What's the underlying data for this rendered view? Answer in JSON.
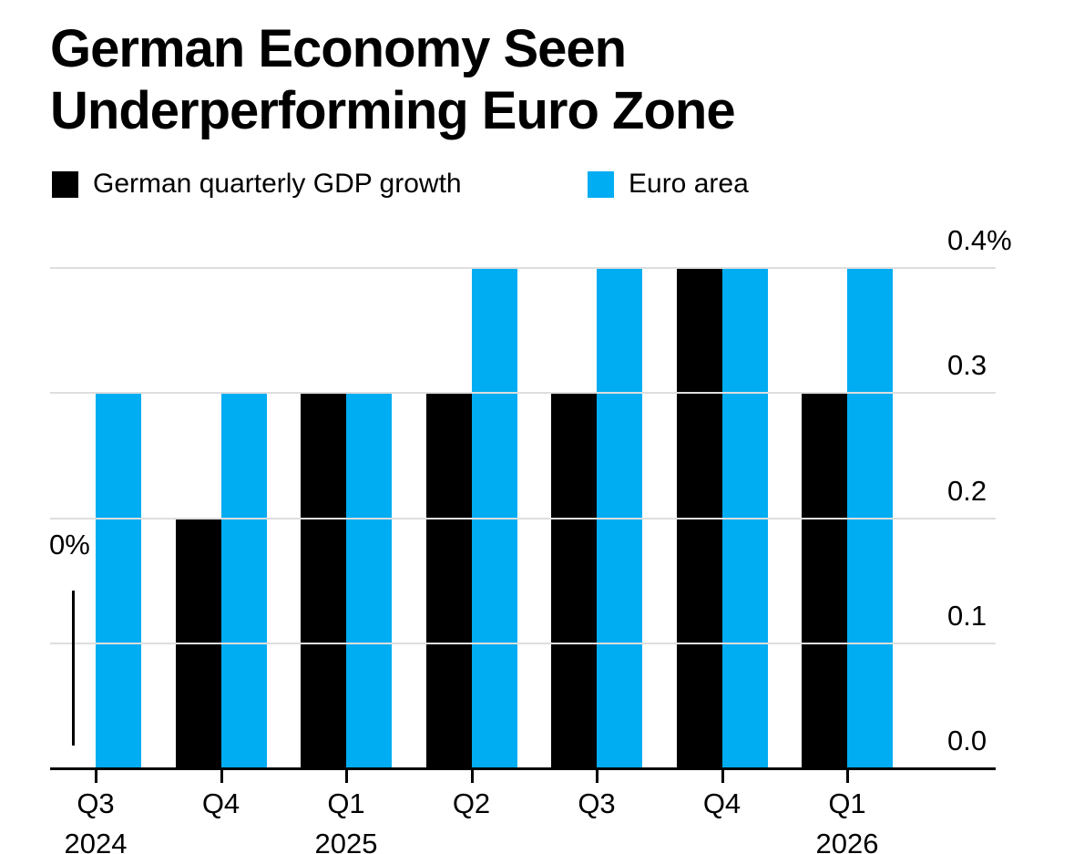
{
  "chart_data": {
    "type": "bar",
    "title_lines": [
      "German Economy Seen",
      "Underperforming Euro Zone"
    ],
    "categories": [
      {
        "quarter": "Q3",
        "year": "2024"
      },
      {
        "quarter": "Q4",
        "year": ""
      },
      {
        "quarter": "Q1",
        "year": "2025"
      },
      {
        "quarter": "Q2",
        "year": ""
      },
      {
        "quarter": "Q3",
        "year": ""
      },
      {
        "quarter": "Q4",
        "year": ""
      },
      {
        "quarter": "Q1",
        "year": "2026"
      }
    ],
    "series": [
      {
        "name": "German quarterly GDP growth",
        "color": "#000000",
        "values": [
          0.0,
          0.2,
          0.3,
          0.3,
          0.3,
          0.4,
          0.3
        ]
      },
      {
        "name": "Euro area",
        "color": "#00ACF2",
        "values": [
          0.3,
          0.3,
          0.3,
          0.4,
          0.4,
          0.4,
          0.4
        ]
      }
    ],
    "unit": "%",
    "y_ticks": [
      {
        "label": "0.4%",
        "value": 0.4
      },
      {
        "label": "0.3",
        "value": 0.3
      },
      {
        "label": "0.2",
        "value": 0.2
      },
      {
        "label": "0.1",
        "value": 0.1
      },
      {
        "label": "0.0",
        "value": 0.0
      }
    ],
    "ylim": [
      0,
      0.4
    ],
    "grid": "horizontal",
    "legend_position": "top",
    "annotation": {
      "text": "0%",
      "series_index": 0,
      "category_index": 0
    }
  },
  "colors": {
    "background": "#ffffff",
    "grid": "#dedede",
    "axis": "#000000",
    "text": "#000000"
  }
}
